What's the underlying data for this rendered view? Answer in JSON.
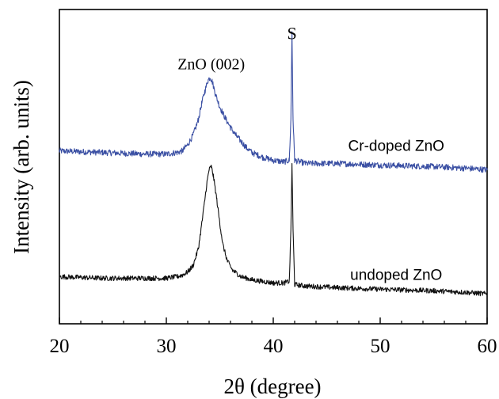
{
  "chart_data": {
    "type": "line",
    "xlabel": "2θ (degree)",
    "ylabel": "Intensity (arb. units)",
    "xlim": [
      20,
      60
    ],
    "x_ticks": [
      20,
      30,
      40,
      50,
      60
    ],
    "x_tick_labels": [
      "20",
      "30",
      "40",
      "50",
      "60"
    ],
    "y_ticks_shown": false,
    "ylim": [
      0,
      10
    ],
    "grid": false,
    "legend": "none",
    "annotations": [
      {
        "text": "ZnO (002)",
        "x": 34.2,
        "y": 8.1
      },
      {
        "text": "S",
        "x": 41.75,
        "y": 9.05
      }
    ],
    "series": [
      {
        "name": "Cr-doped ZnO",
        "color": "#3a4fa3",
        "x": [
          20,
          24,
          28,
          30,
          31,
          31.5,
          32,
          32.5,
          33,
          33.3,
          33.6,
          33.9,
          34.1,
          34.3,
          34.6,
          35.0,
          35.5,
          36.0,
          36.5,
          37.0,
          37.5,
          38.0,
          39.0,
          40.0,
          41.0,
          41.5,
          41.65,
          41.75,
          41.85,
          42.0,
          43.0,
          46.0,
          50.0,
          55.0,
          58.0,
          60.0
        ],
        "y": [
          5.5,
          5.45,
          5.4,
          5.4,
          5.45,
          5.5,
          5.7,
          6.0,
          6.5,
          7.0,
          7.4,
          7.75,
          7.85,
          7.7,
          7.3,
          6.9,
          6.55,
          6.25,
          6.0,
          5.8,
          5.6,
          5.45,
          5.3,
          5.2,
          5.15,
          5.2,
          6.5,
          9.3,
          6.5,
          5.2,
          5.1,
          5.1,
          5.05,
          5.0,
          4.95,
          4.9
        ]
      },
      {
        "name": "undoped ZnO",
        "color": "#111111",
        "x": [
          20,
          24,
          28,
          30,
          31,
          31.5,
          32,
          32.5,
          33,
          33.4,
          33.8,
          34.0,
          34.2,
          34.4,
          34.7,
          35.0,
          35.3,
          35.7,
          36.2,
          37.0,
          38.0,
          39.0,
          40.0,
          41.0,
          41.5,
          41.65,
          41.75,
          41.85,
          42.0,
          43.0,
          46.0,
          50.0,
          55.0,
          58.0,
          60.0
        ],
        "y": [
          1.5,
          1.45,
          1.45,
          1.45,
          1.5,
          1.55,
          1.65,
          1.85,
          2.4,
          3.4,
          4.5,
          4.9,
          5.0,
          4.7,
          4.0,
          3.2,
          2.5,
          2.0,
          1.7,
          1.5,
          1.4,
          1.35,
          1.3,
          1.3,
          1.35,
          3.0,
          5.1,
          3.0,
          1.25,
          1.2,
          1.15,
          1.1,
          1.05,
          1.0,
          0.95
        ]
      }
    ],
    "series_labels": [
      {
        "text": "Cr-doped ZnO",
        "x": 51.5,
        "y": 5.5
      },
      {
        "text": "undoped ZnO",
        "x": 51.5,
        "y": 1.4
      }
    ]
  }
}
